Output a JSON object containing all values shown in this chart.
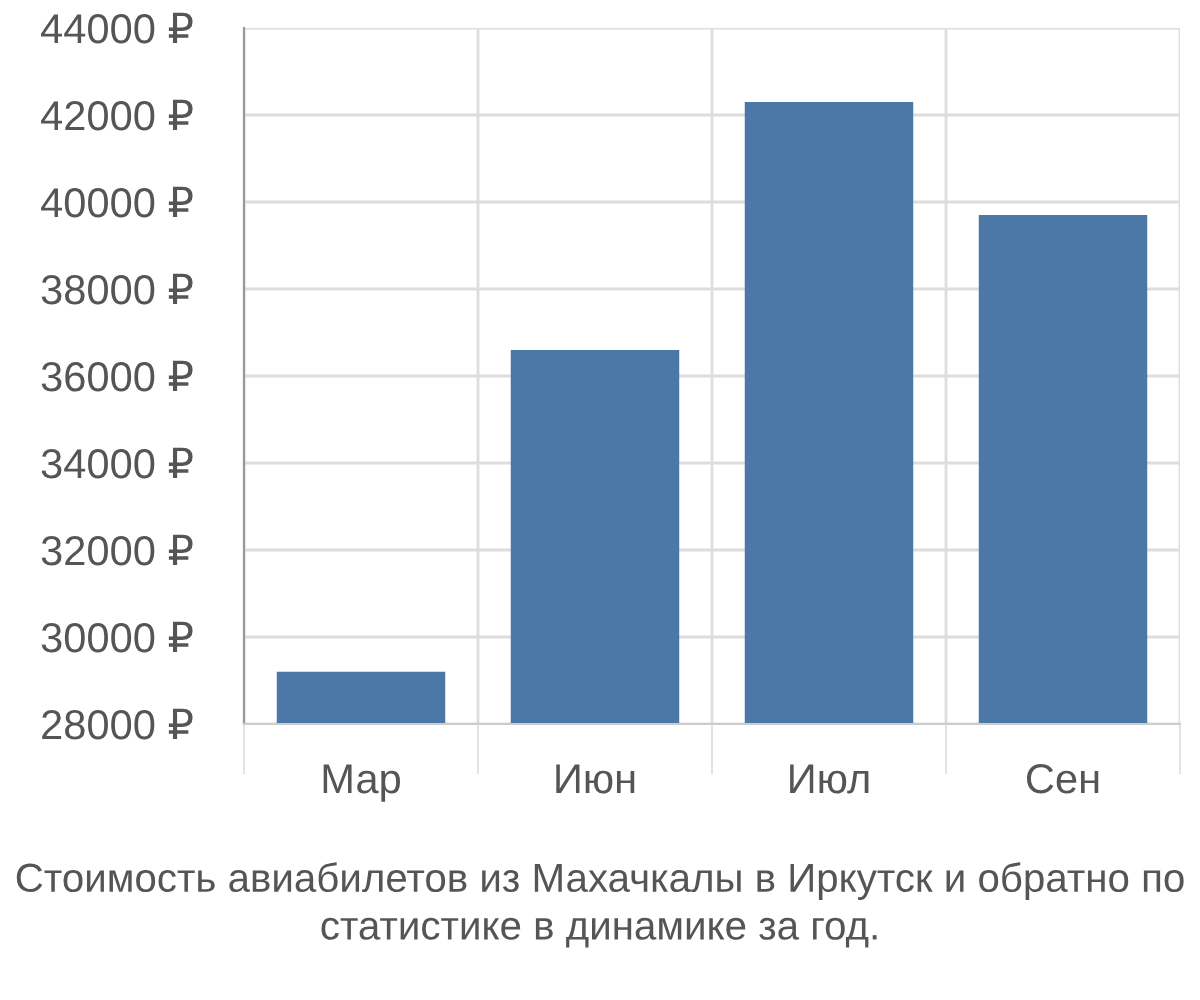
{
  "chart_data": {
    "type": "bar",
    "categories": [
      "Мар",
      "Июн",
      "Июл",
      "Сен"
    ],
    "values": [
      29200,
      36600,
      42300,
      39700
    ],
    "color": "#4c78a8",
    "ylim": [
      28000,
      44000
    ],
    "yticks": [
      {
        "value": 28000,
        "label": "28000 ₽"
      },
      {
        "value": 30000,
        "label": "30000 ₽"
      },
      {
        "value": 32000,
        "label": "32000 ₽"
      },
      {
        "value": 34000,
        "label": "34000 ₽"
      },
      {
        "value": 36000,
        "label": "36000 ₽"
      },
      {
        "value": 38000,
        "label": "38000 ₽"
      },
      {
        "value": 40000,
        "label": "40000 ₽"
      },
      {
        "value": 42000,
        "label": "42000 ₽"
      },
      {
        "value": 44000,
        "label": "44000 ₽"
      }
    ],
    "grid": true,
    "annotations": [
      "Стоимость авиабилетов из Махачкалы в Иркутск и обратно по статистике в динамике за год."
    ]
  }
}
